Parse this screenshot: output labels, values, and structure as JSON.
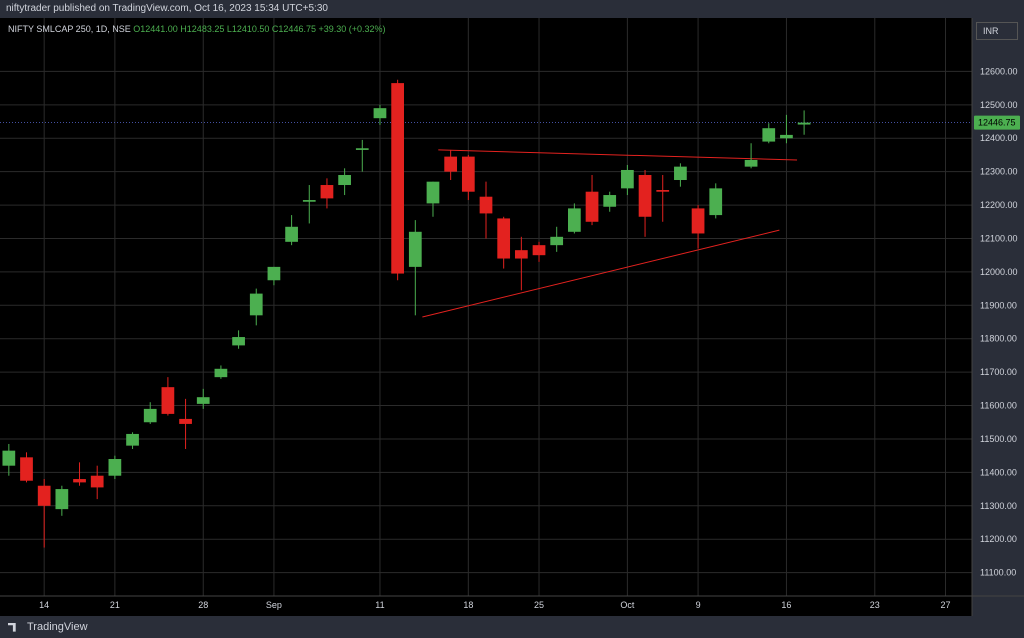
{
  "header": {
    "published_text": "niftytrader published on TradingView.com, Oct 16, 2023 15:34 UTC+5:30"
  },
  "legend": {
    "symbol": "NIFTY SMLCAP 250, 1D, NSE",
    "open": "O12441.00",
    "high": "H12483.25",
    "low": "L12410.50",
    "close": "C12446.75",
    "change": "+39.30 (+0.32%)"
  },
  "currency_button": "INR",
  "last_price_label": "12446.75",
  "footer": {
    "brand": "TradingView"
  },
  "colors": {
    "up": "#4caf50",
    "down": "#e3221f",
    "trendline": "#e3221f",
    "last_price": "#4caf50",
    "grid": "#2b2b2b"
  },
  "chart_data": {
    "type": "candlestick",
    "title": "NIFTY SMLCAP 250, 1D, NSE",
    "ylim": [
      11030,
      12700
    ],
    "y_ticks": [
      11100,
      11200,
      11300,
      11400,
      11500,
      11600,
      11700,
      11800,
      11900,
      12000,
      12100,
      12200,
      12300,
      12400,
      12500,
      12600
    ],
    "x_ticks": [
      {
        "label": "14",
        "slot": 2
      },
      {
        "label": "21",
        "slot": 6
      },
      {
        "label": "28",
        "slot": 11
      },
      {
        "label": "Sep",
        "slot": 15
      },
      {
        "label": "11",
        "slot": 21
      },
      {
        "label": "18",
        "slot": 26
      },
      {
        "label": "25",
        "slot": 30
      },
      {
        "label": "Oct",
        "slot": 35
      },
      {
        "label": "9",
        "slot": 39
      },
      {
        "label": "16",
        "slot": 44
      },
      {
        "label": "23",
        "slot": 49
      },
      {
        "label": "27",
        "slot": 53
      }
    ],
    "slots_total": 55,
    "candles": [
      {
        "slot": 0,
        "o": 11420,
        "h": 11485,
        "l": 11390,
        "c": 11465
      },
      {
        "slot": 1,
        "o": 11445,
        "h": 11460,
        "l": 11370,
        "c": 11375
      },
      {
        "slot": 2,
        "o": 11360,
        "h": 11380,
        "l": 11175,
        "c": 11300
      },
      {
        "slot": 3,
        "o": 11290,
        "h": 11360,
        "l": 11270,
        "c": 11350
      },
      {
        "slot": 4,
        "o": 11380,
        "h": 11430,
        "l": 11360,
        "c": 11370
      },
      {
        "slot": 5,
        "o": 11390,
        "h": 11420,
        "l": 11320,
        "c": 11355
      },
      {
        "slot": 6,
        "o": 11390,
        "h": 11450,
        "l": 11380,
        "c": 11440
      },
      {
        "slot": 7,
        "o": 11480,
        "h": 11520,
        "l": 11470,
        "c": 11515
      },
      {
        "slot": 8,
        "o": 11550,
        "h": 11610,
        "l": 11545,
        "c": 11590
      },
      {
        "slot": 9,
        "o": 11655,
        "h": 11685,
        "l": 11570,
        "c": 11575
      },
      {
        "slot": 10,
        "o": 11560,
        "h": 11620,
        "l": 11470,
        "c": 11545
      },
      {
        "slot": 11,
        "o": 11605,
        "h": 11650,
        "l": 11590,
        "c": 11625
      },
      {
        "slot": 12,
        "o": 11685,
        "h": 11720,
        "l": 11680,
        "c": 11710
      },
      {
        "slot": 13,
        "o": 11780,
        "h": 11825,
        "l": 11770,
        "c": 11805
      },
      {
        "slot": 14,
        "o": 11870,
        "h": 11950,
        "l": 11840,
        "c": 11935
      },
      {
        "slot": 15,
        "o": 11975,
        "h": 12015,
        "l": 11960,
        "c": 12015
      },
      {
        "slot": 16,
        "o": 12090,
        "h": 12170,
        "l": 12080,
        "c": 12135
      },
      {
        "slot": 17,
        "o": 12210,
        "h": 12260,
        "l": 12145,
        "c": 12215
      },
      {
        "slot": 18,
        "o": 12260,
        "h": 12280,
        "l": 12190,
        "c": 12220
      },
      {
        "slot": 19,
        "o": 12260,
        "h": 12310,
        "l": 12230,
        "c": 12290
      },
      {
        "slot": 20,
        "o": 12365,
        "h": 12395,
        "l": 12300,
        "c": 12370
      },
      {
        "slot": 21,
        "o": 12460,
        "h": 12500,
        "l": 12440,
        "c": 12490
      },
      {
        "slot": 22,
        "o": 12565,
        "h": 12575,
        "l": 11975,
        "c": 11995
      },
      {
        "slot": 23,
        "o": 12015,
        "h": 12155,
        "l": 11870,
        "c": 12120
      },
      {
        "slot": 24,
        "o": 12205,
        "h": 12270,
        "l": 12165,
        "c": 12270
      },
      {
        "slot": 25,
        "o": 12345,
        "h": 12365,
        "l": 12275,
        "c": 12300
      },
      {
        "slot": 26,
        "o": 12345,
        "h": 12350,
        "l": 12215,
        "c": 12240
      },
      {
        "slot": 27,
        "o": 12225,
        "h": 12270,
        "l": 12100,
        "c": 12175
      },
      {
        "slot": 28,
        "o": 12160,
        "h": 12165,
        "l": 12010,
        "c": 12040
      },
      {
        "slot": 29,
        "o": 12065,
        "h": 12105,
        "l": 11945,
        "c": 12040
      },
      {
        "slot": 30,
        "o": 12080,
        "h": 12090,
        "l": 12030,
        "c": 12050
      },
      {
        "slot": 31,
        "o": 12080,
        "h": 12135,
        "l": 12060,
        "c": 12105
      },
      {
        "slot": 32,
        "o": 12120,
        "h": 12205,
        "l": 12115,
        "c": 12190
      },
      {
        "slot": 33,
        "o": 12240,
        "h": 12290,
        "l": 12140,
        "c": 12150
      },
      {
        "slot": 34,
        "o": 12195,
        "h": 12240,
        "l": 12180,
        "c": 12230
      },
      {
        "slot": 35,
        "o": 12250,
        "h": 12320,
        "l": 12230,
        "c": 12305
      },
      {
        "slot": 36,
        "o": 12290,
        "h": 12305,
        "l": 12105,
        "c": 12165
      },
      {
        "slot": 37,
        "o": 12245,
        "h": 12290,
        "l": 12150,
        "c": 12240
      },
      {
        "slot": 38,
        "o": 12275,
        "h": 12325,
        "l": 12255,
        "c": 12315
      },
      {
        "slot": 39,
        "o": 12190,
        "h": 12200,
        "l": 12070,
        "c": 12115
      },
      {
        "slot": 40,
        "o": 12170,
        "h": 12265,
        "l": 12160,
        "c": 12250
      },
      {
        "slot": 42,
        "o": 12315,
        "h": 12385,
        "l": 12310,
        "c": 12335
      },
      {
        "slot": 43,
        "o": 12390,
        "h": 12445,
        "l": 12385,
        "c": 12430
      },
      {
        "slot": 44,
        "o": 12400,
        "h": 12470,
        "l": 12385,
        "c": 12410
      },
      {
        "slot": 45,
        "o": 12441,
        "h": 12483.25,
        "l": 12410.5,
        "c": 12446.75
      }
    ],
    "trendlines": [
      {
        "from": {
          "slot": 23.4,
          "value": 11865
        },
        "to": {
          "slot": 43.6,
          "value": 12125
        }
      },
      {
        "from": {
          "slot": 24.3,
          "value": 12365
        },
        "to": {
          "slot": 44.6,
          "value": 12335
        }
      }
    ],
    "last_price": 12446.75
  }
}
